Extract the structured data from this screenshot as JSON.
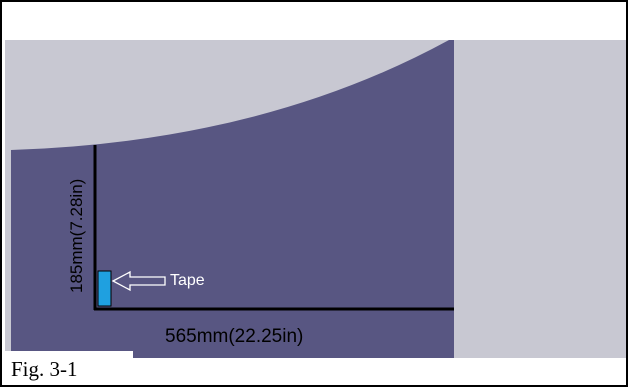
{
  "figure": {
    "caption": "Fig. 3-1",
    "height_dimension_label": "185mm(7.28in)",
    "width_dimension_label": "565mm(22.25in)",
    "tape_label": "Tape"
  },
  "colors": {
    "panel_fill": "#585682",
    "background_gray": "#c8c8d2",
    "tape_fill": "#1fa0e0",
    "line": "#000000"
  }
}
